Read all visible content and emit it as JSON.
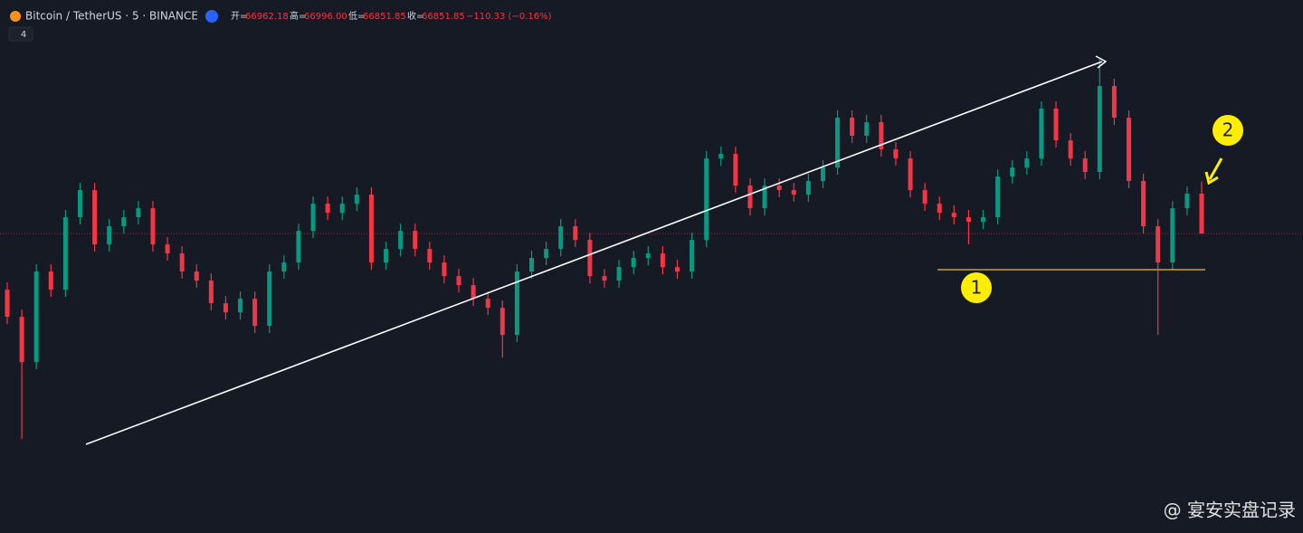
{
  "chart_data": {
    "type": "candlestick",
    "title": "Bitcoin / TetherUS · 5 · BINANCE",
    "legend_items": [
      {
        "label": "开=",
        "value": "66962.18"
      },
      {
        "label": "高=",
        "value": "66996.00"
      },
      {
        "label": "低=",
        "value": "66851.85"
      },
      {
        "label": "收=",
        "value": "66851.85"
      }
    ],
    "change": "−110.33 (−0.16%)",
    "indicator_count": "4",
    "up_color": "#089981",
    "down_color": "#f23645",
    "ylim": [
      66025,
      67497
    ],
    "annotations": [
      "1",
      "2"
    ],
    "watermark": "@ 宴安实盘记录",
    "candles": [
      [
        66697,
        66717,
        66602,
        66622
      ],
      [
        66622,
        66642,
        66284.5,
        66497
      ],
      [
        66497,
        66767,
        66477,
        66747
      ],
      [
        66747,
        66767,
        66677,
        66697
      ],
      [
        66697,
        66917,
        66677,
        66897
      ],
      [
        66897,
        66992,
        66877,
        66972
      ],
      [
        66972,
        66992,
        66802,
        66822
      ],
      [
        66822,
        66892,
        66802,
        66872
      ],
      [
        66872,
        66917,
        66852,
        66897
      ],
      [
        66897,
        66942,
        66877,
        66922
      ],
      [
        66922,
        66942,
        66802,
        66822
      ],
      [
        66822,
        66842,
        66777,
        66797
      ],
      [
        66797,
        66817,
        66727,
        66747
      ],
      [
        66747,
        66767,
        66702,
        66722
      ],
      [
        66722,
        66742,
        66639.5,
        66659.5
      ],
      [
        66659.5,
        66679.5,
        66614.5,
        66634.5
      ],
      [
        66634.5,
        66692,
        66614.5,
        66672
      ],
      [
        66672,
        66692,
        66577,
        66597
      ],
      [
        66597,
        66767,
        66577,
        66747
      ],
      [
        66747,
        66792,
        66727,
        66772
      ],
      [
        66772,
        66879.5,
        66752,
        66859.5
      ],
      [
        66859.5,
        66954.5,
        66839.5,
        66934.5
      ],
      [
        66934.5,
        66954.5,
        66889.5,
        66909.5
      ],
      [
        66909.5,
        66954.5,
        66889.5,
        66934.5
      ],
      [
        66934.5,
        66979.5,
        66914.5,
        66959.5
      ],
      [
        66959.5,
        66979.5,
        66752,
        66772
      ],
      [
        66772,
        66829.5,
        66752,
        66809.5
      ],
      [
        66809.5,
        66879.5,
        66789.5,
        66859.5
      ],
      [
        66859.5,
        66879.5,
        66789.5,
        66809.5
      ],
      [
        66809.5,
        66829.5,
        66752,
        66772
      ],
      [
        66772,
        66792,
        66714.5,
        66734.5
      ],
      [
        66734.5,
        66754.5,
        66689.5,
        66709.5
      ],
      [
        66709.5,
        66729.5,
        66652,
        66672
      ],
      [
        66672,
        66692,
        66627,
        66647
      ],
      [
        66647,
        66667,
        66509.5,
        66572
      ],
      [
        66572,
        66767,
        66552,
        66747
      ],
      [
        66747,
        66804.5,
        66727,
        66784.5
      ],
      [
        66784.5,
        66829.5,
        66764.5,
        66809.5
      ],
      [
        66809.5,
        66892,
        66789.5,
        66872
      ],
      [
        66872,
        66892,
        66814.5,
        66834.5
      ],
      [
        66834.5,
        66854.5,
        66714.5,
        66734.5
      ],
      [
        66734.5,
        66754.5,
        66702,
        66722
      ],
      [
        66722,
        66779.5,
        66702,
        66759.5
      ],
      [
        66759.5,
        66804.5,
        66739.5,
        66784.5
      ],
      [
        66784.5,
        66817,
        66764.5,
        66797
      ],
      [
        66797,
        66817,
        66739.5,
        66759.5
      ],
      [
        66759.5,
        66779.5,
        66727,
        66747
      ],
      [
        66747,
        66854.5,
        66727,
        66834.5
      ],
      [
        66834.5,
        67079.5,
        66814.5,
        67059.5
      ],
      [
        67059.5,
        67092,
        67039.5,
        67072
      ],
      [
        67072,
        67092,
        66964.5,
        66984.5
      ],
      [
        66984.5,
        67004.5,
        66902,
        66922
      ],
      [
        66922,
        67004.5,
        66902,
        66984.5
      ],
      [
        66984.5,
        67004.5,
        66952,
        66972
      ],
      [
        66972,
        66992,
        66939.5,
        66959.5
      ],
      [
        66959.5,
        67017,
        66939.5,
        66997
      ],
      [
        66997,
        67054.5,
        66977,
        67034.5
      ],
      [
        67034.5,
        67192,
        67014.5,
        67172
      ],
      [
        67172,
        67192,
        67102,
        67122
      ],
      [
        67122,
        67179.5,
        67102,
        67159.5
      ],
      [
        67159.5,
        67179.5,
        67064.5,
        67084.5
      ],
      [
        67084.5,
        67104.5,
        67039.5,
        67059.5
      ],
      [
        67059.5,
        67079.5,
        66952,
        66972
      ],
      [
        66972,
        66992,
        66914.5,
        66934.5
      ],
      [
        66934.5,
        66954.5,
        66889.5,
        66909.5
      ],
      [
        66909.5,
        66929.5,
        66877,
        66897
      ],
      [
        66897,
        66917,
        66822,
        66884.5
      ],
      [
        66884.5,
        66917,
        66864.5,
        66897
      ],
      [
        66897,
        67029.5,
        66877,
        67009.5
      ],
      [
        67009.5,
        67054.5,
        66989.5,
        67034.5
      ],
      [
        67034.5,
        67079.5,
        67014.5,
        67059.5
      ],
      [
        67059.5,
        67217,
        67039.5,
        67197
      ],
      [
        67197,
        67217,
        67089.5,
        67109.5
      ],
      [
        67109.5,
        67129.5,
        67039.5,
        67059.5
      ],
      [
        67059.5,
        67079.5,
        67002,
        67022
      ],
      [
        67022,
        67334.5,
        67002,
        67259.5
      ],
      [
        67259.5,
        67279.5,
        67152,
        67172
      ],
      [
        67172,
        67192,
        66977,
        66997
      ],
      [
        66997,
        67017,
        66852,
        66872
      ],
      [
        66872,
        66892,
        66572,
        66772
      ],
      [
        66772,
        66942,
        66752,
        66922
      ],
      [
        66922,
        66982.18,
        66902,
        66962.18
      ],
      [
        66962.18,
        66996,
        66851.85,
        66851.85
      ]
    ]
  }
}
